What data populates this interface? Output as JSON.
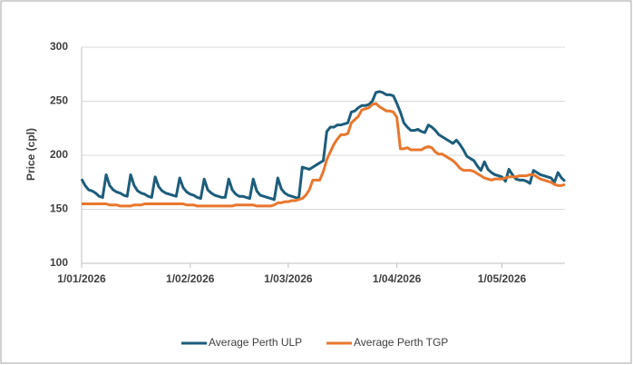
{
  "chart_data": {
    "type": "line",
    "y_label": "Price (cpl)",
    "x": [
      0,
      1,
      2,
      3,
      4,
      5,
      6,
      7,
      8,
      9,
      10,
      11,
      12,
      13,
      14,
      15,
      16,
      17,
      18,
      19,
      20,
      21,
      22,
      23,
      24,
      25,
      26,
      27,
      28,
      29,
      30,
      31,
      32,
      33,
      34,
      35,
      36,
      37,
      38,
      39,
      40,
      41,
      42,
      43,
      44,
      45,
      46,
      47,
      48,
      49,
      50,
      51,
      52,
      53,
      54,
      55,
      56,
      57,
      58,
      59,
      60,
      61,
      62,
      63,
      64,
      65,
      66,
      67,
      68,
      69,
      70,
      71,
      72,
      73,
      74,
      75,
      76,
      77,
      78,
      79,
      80,
      81,
      82,
      83,
      84,
      85,
      86,
      87,
      88,
      89,
      90,
      91,
      92,
      93,
      94,
      95,
      96,
      97,
      98,
      99,
      100,
      101,
      102,
      103,
      104,
      105,
      106,
      107,
      108,
      109,
      110,
      111,
      112,
      113,
      114,
      115,
      116,
      117,
      118,
      119,
      120,
      121,
      122,
      123,
      124,
      125,
      126,
      127,
      128,
      129,
      130,
      131,
      132,
      133,
      134,
      135,
      136,
      137,
      138
    ],
    "xlim": [
      0,
      138
    ],
    "xticks": [
      {
        "value": 0,
        "label": "1/01/2026"
      },
      {
        "value": 31,
        "label": "1/02/2026"
      },
      {
        "value": 59,
        "label": "1/03/2026"
      },
      {
        "value": 90,
        "label": "1/04/2026"
      },
      {
        "value": 120,
        "label": "1/05/2026"
      }
    ],
    "ylim": [
      100,
      300
    ],
    "yticks": [
      100,
      150,
      200,
      250,
      300
    ],
    "grid": true,
    "series": [
      {
        "name": "Average Perth ULP",
        "color": "#1d5d7c",
        "values": [
          178,
          172,
          168,
          167,
          165,
          162,
          161,
          182,
          172,
          168,
          166,
          165,
          163,
          162,
          182,
          172,
          167,
          165,
          164,
          162,
          161,
          180,
          171,
          167,
          165,
          164,
          163,
          162,
          179,
          170,
          166,
          164,
          163,
          161,
          160,
          178,
          168,
          165,
          163,
          162,
          161,
          161,
          178,
          168,
          164,
          162,
          162,
          161,
          160,
          178,
          167,
          163,
          162,
          161,
          160,
          159,
          179,
          169,
          165,
          163,
          162,
          161,
          160,
          189,
          188,
          187,
          189,
          191,
          193,
          195,
          222,
          226,
          226,
          228,
          228,
          229,
          230,
          240,
          241,
          244,
          246,
          246,
          247,
          250,
          258,
          259,
          258,
          256,
          256,
          255,
          248,
          240,
          230,
          226,
          223,
          223,
          224,
          222,
          221,
          228,
          226,
          223,
          219,
          217,
          215,
          213,
          211,
          214,
          210,
          205,
          199,
          197,
          195,
          190,
          186,
          194,
          187,
          184,
          182,
          181,
          180,
          176,
          187,
          182,
          178,
          177,
          177,
          176,
          174,
          186,
          184,
          182,
          181,
          180,
          179,
          175,
          184,
          179,
          176
        ]
      },
      {
        "name": "Average Perth TGP",
        "color": "#e8772e",
        "values": [
          155,
          155,
          155,
          155,
          155,
          155,
          155,
          155,
          154,
          154,
          154,
          153,
          153,
          153,
          153,
          154,
          154,
          154,
          155,
          155,
          155,
          155,
          155,
          155,
          155,
          155,
          155,
          155,
          155,
          155,
          154,
          154,
          154,
          153,
          153,
          153,
          153,
          153,
          153,
          153,
          153,
          153,
          153,
          153,
          154,
          154,
          154,
          154,
          154,
          154,
          153,
          153,
          153,
          153,
          153,
          154,
          156,
          156,
          157,
          157,
          158,
          158,
          159,
          160,
          163,
          168,
          177,
          177,
          177,
          185,
          196,
          203,
          210,
          215,
          219,
          219,
          220,
          230,
          233,
          236,
          242,
          243,
          244,
          247,
          248,
          245,
          243,
          241,
          241,
          240,
          235,
          206,
          206,
          207,
          205,
          205,
          205,
          205,
          207,
          208,
          207,
          203,
          201,
          201,
          199,
          197,
          195,
          192,
          188,
          186,
          186,
          186,
          185,
          183,
          181,
          179,
          178,
          177,
          178,
          178,
          178,
          179,
          180,
          180,
          180,
          181,
          181,
          181,
          182,
          182,
          180,
          178,
          177,
          176,
          175,
          173,
          172,
          172,
          173
        ]
      }
    ]
  }
}
